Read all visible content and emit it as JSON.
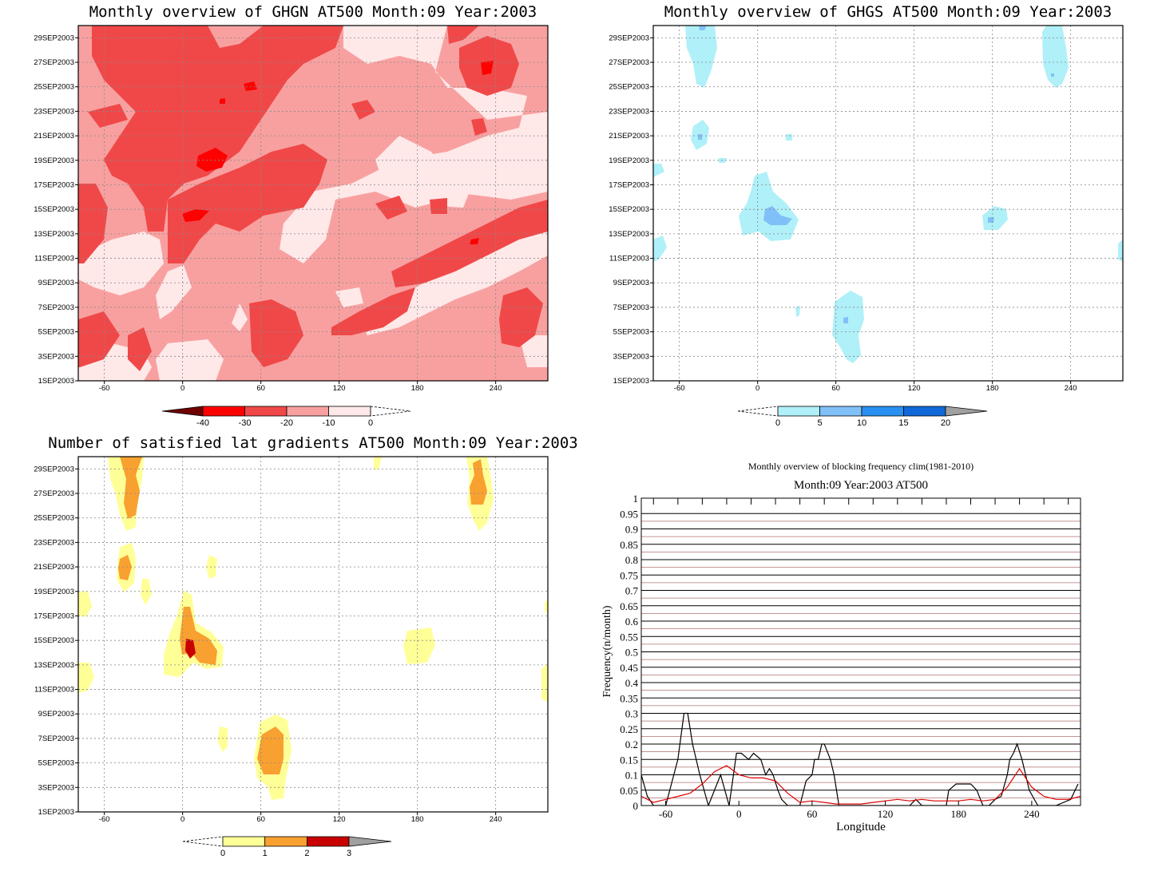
{
  "panels": {
    "ghgn": {
      "title": "Monthly overview of GHGN AT500 Month:09 Year:2003",
      "colorbar": {
        "labels": [
          "-40",
          "-30",
          "-20",
          "-10",
          "0"
        ],
        "colors": [
          "#ff0000",
          "#f04848",
          "#f8a0a0",
          "#ffe8e8"
        ]
      }
    },
    "ghgs": {
      "title": "Monthly overview of GHGS AT500 Month:09 Year:2003",
      "colorbar": {
        "labels": [
          "0",
          "5",
          "10",
          "15",
          "20"
        ],
        "colors": [
          "#b0f0f8",
          "#80c0f8",
          "#2890f0",
          "#1068d8"
        ]
      }
    },
    "lat": {
      "title": "Number of satisfied lat gradients AT500 Month:09 Year:2003",
      "colorbar": {
        "labels": [
          "0",
          "1",
          "2",
          "3"
        ],
        "colors": [
          "#ffff98",
          "#f8a030",
          "#c80000"
        ]
      }
    },
    "freq": {
      "title_line1": "Monthly overview of blocking frequency clim(1981-2010)",
      "title_line2": "Month:09 Year:2003  AT500"
    }
  },
  "shared_axes": {
    "x_ticks": [
      "-60",
      "0",
      "60",
      "120",
      "180",
      "240"
    ],
    "y_ticks": [
      "1SEP2003",
      "3SEP2003",
      "5SEP2003",
      "7SEP2003",
      "9SEP2003",
      "11SEP2003",
      "13SEP2003",
      "15SEP2003",
      "17SEP2003",
      "19SEP2003",
      "21SEP2003",
      "23SEP2003",
      "25SEP2003",
      "27SEP2003",
      "29SEP2003"
    ]
  },
  "chart_data": [
    {
      "type": "heatmap",
      "title": "Monthly overview of GHGN AT500 Month:09 Year:2003",
      "x_ticks": [
        -60,
        0,
        60,
        120,
        180,
        240
      ],
      "xlim": [
        -80,
        280
      ],
      "y_ticks": [
        "1SEP2003",
        "3SEP2003",
        "5SEP2003",
        "7SEP2003",
        "9SEP2003",
        "11SEP2003",
        "13SEP2003",
        "15SEP2003",
        "17SEP2003",
        "19SEP2003",
        "21SEP2003",
        "23SEP2003",
        "25SEP2003",
        "27SEP2003",
        "29SEP2003"
      ],
      "colorbar_levels": [
        -40,
        -30,
        -20,
        -10,
        0
      ],
      "grid": true
    },
    {
      "type": "heatmap",
      "title": "Monthly overview of GHGS AT500 Month:09 Year:2003",
      "x_ticks": [
        -60,
        0,
        60,
        120,
        180,
        240
      ],
      "xlim": [
        -80,
        280
      ],
      "y_ticks": [
        "1SEP2003",
        "3SEP2003",
        "5SEP2003",
        "7SEP2003",
        "9SEP2003",
        "11SEP2003",
        "13SEP2003",
        "15SEP2003",
        "17SEP2003",
        "19SEP2003",
        "21SEP2003",
        "23SEP2003",
        "25SEP2003",
        "27SEP2003",
        "29SEP2003"
      ],
      "colorbar_levels": [
        0,
        5,
        10,
        15,
        20
      ],
      "grid": true
    },
    {
      "type": "heatmap",
      "title": "Number of satisfied lat gradients AT500 Month:09 Year:2003",
      "x_ticks": [
        -60,
        0,
        60,
        120,
        180,
        240
      ],
      "xlim": [
        -80,
        280
      ],
      "y_ticks": [
        "1SEP2003",
        "3SEP2003",
        "5SEP2003",
        "7SEP2003",
        "9SEP2003",
        "11SEP2003",
        "13SEP2003",
        "15SEP2003",
        "17SEP2003",
        "19SEP2003",
        "21SEP2003",
        "23SEP2003",
        "25SEP2003",
        "27SEP2003",
        "29SEP2003"
      ],
      "colorbar_levels": [
        0,
        1,
        2,
        3
      ],
      "grid": true
    },
    {
      "type": "line",
      "title": "Monthly overview of blocking frequency clim(1981-2010)",
      "subtitle": "Month:09 Year:2003  AT500",
      "xlabel": "Longitude",
      "ylabel": "Frequency(n/month)",
      "xlim": [
        -80,
        280
      ],
      "ylim": [
        0,
        1
      ],
      "x_ticks": [
        -60,
        0,
        60,
        120,
        180,
        240
      ],
      "y_ticks": [
        0,
        0.05,
        0.1,
        0.15,
        0.2,
        0.25,
        0.3,
        0.35,
        0.4,
        0.45,
        0.5,
        0.55,
        0.6,
        0.65,
        0.7,
        0.75,
        0.8,
        0.85,
        0.9,
        0.95,
        1
      ],
      "series": [
        {
          "color": "#000000",
          "x": [
            -80,
            -75,
            -70,
            -60,
            -50,
            -45,
            -42,
            -38,
            -32,
            -25,
            -15,
            -8,
            -2,
            2,
            8,
            12,
            18,
            22,
            25,
            28,
            32,
            35,
            40,
            45,
            50,
            55,
            60,
            62,
            65,
            68,
            70,
            72,
            75,
            78,
            82,
            90,
            110,
            130,
            140,
            145,
            150,
            160,
            170,
            172,
            178,
            185,
            190,
            195,
            200,
            205,
            210,
            215,
            220,
            222,
            225,
            228,
            232,
            238,
            245,
            260,
            272,
            278
          ],
          "y": [
            0.1,
            0.03,
            0,
            0,
            0.15,
            0.3,
            0.3,
            0.2,
            0.1,
            0,
            0.1,
            0,
            0.17,
            0.17,
            0.15,
            0.17,
            0.15,
            0.1,
            0.12,
            0.1,
            0.05,
            0.02,
            0,
            0,
            0,
            0.08,
            0.1,
            0.15,
            0.15,
            0.2,
            0.2,
            0.18,
            0.15,
            0.1,
            0,
            0,
            0,
            0,
            0,
            0.02,
            0,
            0,
            0,
            0.05,
            0.07,
            0.07,
            0.07,
            0.05,
            0,
            0,
            0.02,
            0.03,
            0.1,
            0.15,
            0.17,
            0.2,
            0.15,
            0.05,
            0,
            0,
            0.02,
            0.07
          ]
        },
        {
          "color": "#dd0000",
          "x": [
            -80,
            -70,
            -60,
            -50,
            -40,
            -30,
            -20,
            -10,
            0,
            10,
            20,
            30,
            40,
            50,
            60,
            70,
            80,
            90,
            100,
            110,
            120,
            130,
            140,
            150,
            160,
            170,
            180,
            190,
            200,
            210,
            220,
            230,
            240,
            250,
            260,
            270,
            280
          ],
          "y": [
            0.03,
            0.01,
            0.02,
            0.03,
            0.04,
            0.07,
            0.11,
            0.13,
            0.1,
            0.09,
            0.09,
            0.08,
            0.04,
            0.01,
            0.015,
            0.01,
            0.005,
            0.005,
            0.005,
            0.01,
            0.015,
            0.02,
            0.015,
            0.02,
            0.015,
            0.015,
            0.015,
            0.02,
            0.015,
            0.02,
            0.06,
            0.12,
            0.06,
            0.03,
            0.02,
            0.02,
            0.03
          ]
        }
      ],
      "grid": true
    }
  ]
}
